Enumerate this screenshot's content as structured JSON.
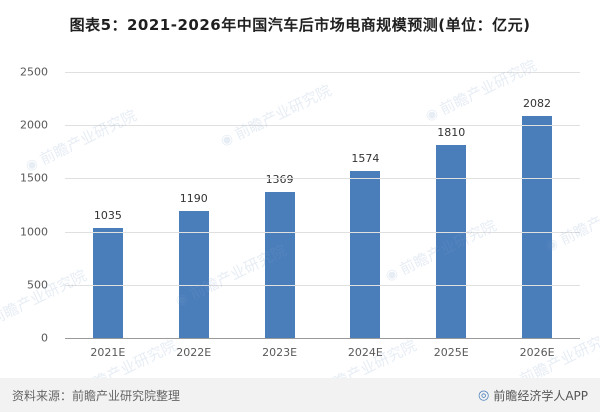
{
  "title": "图表5：2021-2026年中国汽车后市场电商规模预测(单位：亿元)",
  "chart_data": {
    "type": "bar",
    "categories": [
      "2021E",
      "2022E",
      "2023E",
      "2024E",
      "2025E",
      "2026E"
    ],
    "values": [
      1035,
      1190,
      1369,
      1574,
      1810,
      2082
    ],
    "title": "图表5：2021-2026年中国汽车后市场电商规模预测(单位：亿元)",
    "xlabel": "",
    "ylabel": "",
    "ylim": [
      0,
      2500
    ],
    "yticks": [
      0,
      500,
      1000,
      1500,
      2000,
      2500
    ],
    "grid": true,
    "legend": false,
    "bar_color": "#4a7ebb"
  },
  "watermark": {
    "text": "前瞻产业研究院",
    "icon": "◉"
  },
  "footer": {
    "source": "资料来源：前瞻产业研究院整理",
    "brand_icon": "◎",
    "brand": "前瞻经济学人APP"
  }
}
